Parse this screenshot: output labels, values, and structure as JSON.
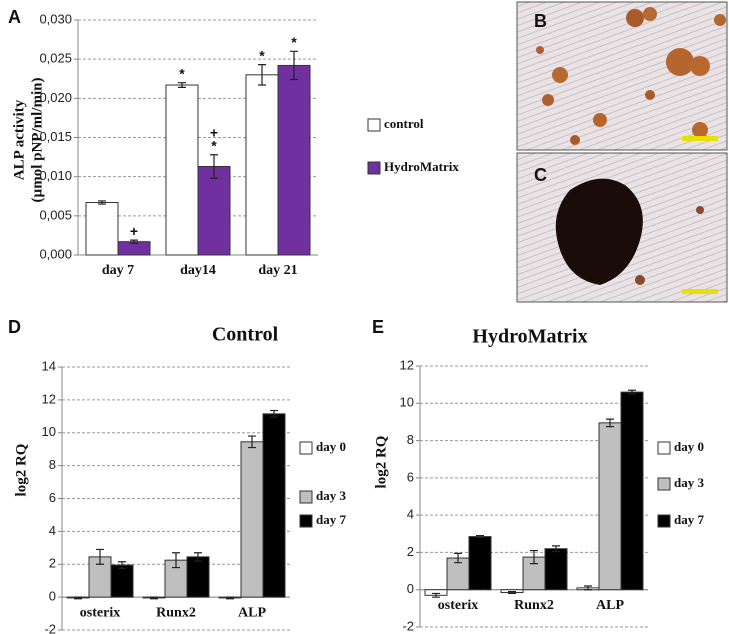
{
  "chart_data": [
    {
      "type": "bar",
      "panel": "A",
      "ylabel": [
        "ALP activity",
        "(µmol pNP/ml/min)"
      ],
      "categories": [
        "day 7",
        "day14",
        "day 21"
      ],
      "series": [
        {
          "name": "control",
          "color": "#ffffff",
          "values": [
            0.0067,
            0.0217,
            0.023
          ],
          "errors": [
            0.0002,
            0.0003,
            0.0013
          ],
          "annotations": [
            [],
            [
              "*"
            ],
            [
              "*"
            ]
          ]
        },
        {
          "name": "HydroMatrix",
          "color": "#7030a0",
          "values": [
            0.0017,
            0.0113,
            0.0242
          ],
          "errors": [
            0.0002,
            0.0015,
            0.0018
          ],
          "annotations": [
            [
              "+"
            ],
            [
              "+",
              "*"
            ],
            [
              "*"
            ]
          ]
        }
      ],
      "ylim": [
        0,
        0.03
      ],
      "yticks": [
        {
          "value": 0,
          "label": "0,000"
        },
        {
          "value": 0.005,
          "label": "0,005"
        },
        {
          "value": 0.01,
          "label": "0,010"
        },
        {
          "value": 0.015,
          "label": "0,015"
        },
        {
          "value": 0.02,
          "label": "0,020"
        },
        {
          "value": 0.025,
          "label": "0,025"
        },
        {
          "value": 0.03,
          "label": "0,030"
        }
      ],
      "grid": true
    },
    {
      "type": "bar",
      "panel": "D",
      "title": "Control",
      "ylabel": [
        "log2 RQ"
      ],
      "categories": [
        "osterix",
        "Runx2",
        "ALP"
      ],
      "series": [
        {
          "name": "day 0",
          "color": "#ffffff",
          "values": [
            -0.05,
            -0.05,
            -0.05
          ],
          "errors": [
            0.05,
            0.05,
            0.05
          ]
        },
        {
          "name": "day 3",
          "color": "#bfbfbf",
          "values": [
            2.45,
            2.25,
            9.45
          ],
          "errors": [
            0.45,
            0.45,
            0.35
          ]
        },
        {
          "name": "day 7",
          "color": "#000000",
          "values": [
            1.95,
            2.45,
            11.15
          ],
          "errors": [
            0.2,
            0.25,
            0.2
          ]
        }
      ],
      "ylim": [
        -2,
        14
      ],
      "yticks": [
        -2,
        0,
        2,
        4,
        6,
        8,
        10,
        12,
        14
      ],
      "grid": true
    },
    {
      "type": "bar",
      "panel": "E",
      "title": "HydroMatrix",
      "ylabel": [
        "log2 RQ"
      ],
      "categories": [
        "osterix",
        "Runx2",
        "ALP"
      ],
      "series": [
        {
          "name": "day 0",
          "color": "#ffffff",
          "values": [
            -0.3,
            -0.15,
            0.1
          ],
          "errors": [
            0.1,
            0.05,
            0.1
          ]
        },
        {
          "name": "day 3",
          "color": "#bfbfbf",
          "values": [
            1.7,
            1.75,
            8.95
          ],
          "errors": [
            0.25,
            0.35,
            0.2
          ]
        },
        {
          "name": "day 7",
          "color": "#000000",
          "values": [
            2.85,
            2.2,
            10.6
          ],
          "errors": [
            0.05,
            0.15,
            0.1
          ]
        }
      ],
      "ylim": [
        -2,
        12
      ],
      "yticks": [
        -2,
        0,
        2,
        4,
        6,
        8,
        10,
        12
      ],
      "grid": true
    }
  ],
  "images": [
    {
      "label": "B"
    },
    {
      "label": "C"
    }
  ]
}
